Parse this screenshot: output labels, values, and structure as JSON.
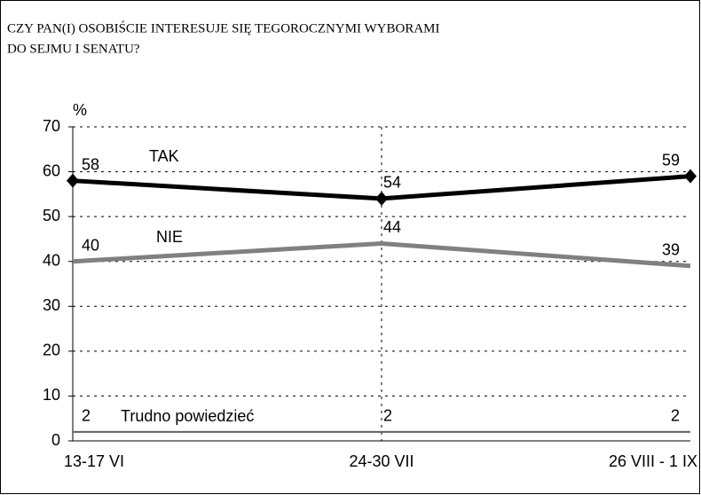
{
  "chart_data": {
    "type": "line",
    "title": [
      "CZY PAN(I) OSOBIŚCIE INTERESUJE SIĘ TEGOROCZNYMI WYBORAMI",
      "DO  SEJMU I SENATU?"
    ],
    "y_label": "%",
    "categories": [
      "13-17 VI",
      "24-30 VII",
      "26 VIII - 1 IX"
    ],
    "series": [
      {
        "name": "TAK",
        "color": "#000000",
        "marker": "diamond",
        "values": [
          58,
          54,
          59
        ]
      },
      {
        "name": "NIE",
        "color": "#808080",
        "values": [
          40,
          44,
          39
        ]
      },
      {
        "name": "Trudno powiedzieć",
        "color": "#606060",
        "values": [
          2,
          2,
          2
        ]
      }
    ],
    "ylim": [
      0,
      70
    ],
    "yticks": [
      0,
      10,
      20,
      30,
      40,
      50,
      60,
      70
    ],
    "grid": true
  }
}
